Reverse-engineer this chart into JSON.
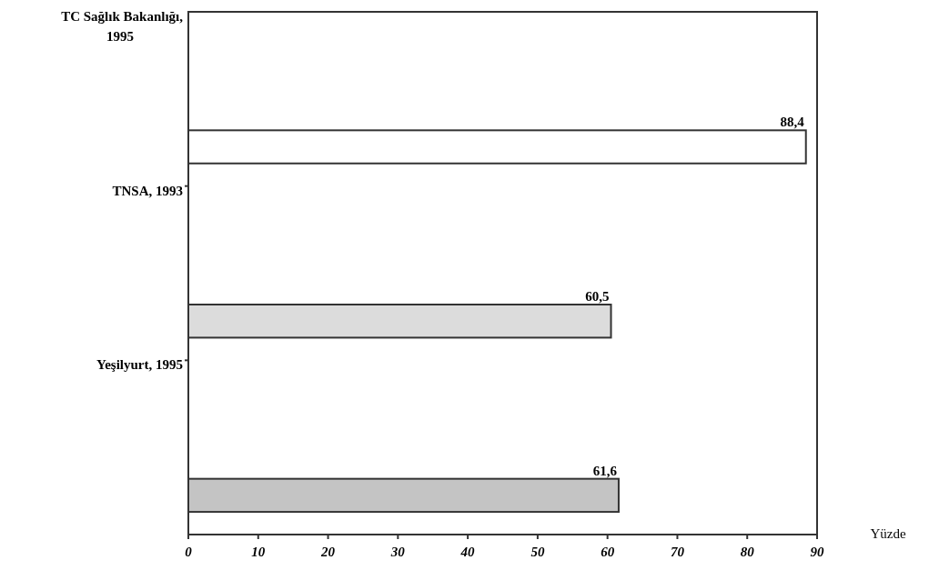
{
  "chart_data": {
    "type": "bar",
    "orientation": "horizontal",
    "categories": [
      "TC Sağlık Bakanlığı,\n1995",
      "TNSA, 1993",
      "Yeşilyurt, 1995"
    ],
    "values": [
      88.4,
      60.5,
      61.6
    ],
    "colors": [
      "#ffffff",
      "#dcdcdc",
      "#c4c4c4"
    ],
    "value_labels": [
      "88,4",
      "60,5",
      "61,6"
    ],
    "xlim": [
      0,
      90
    ],
    "xticks": [
      0,
      10,
      20,
      30,
      40,
      50,
      60,
      70,
      80,
      90
    ],
    "xlabel": "Yüzde",
    "grid": false
  }
}
